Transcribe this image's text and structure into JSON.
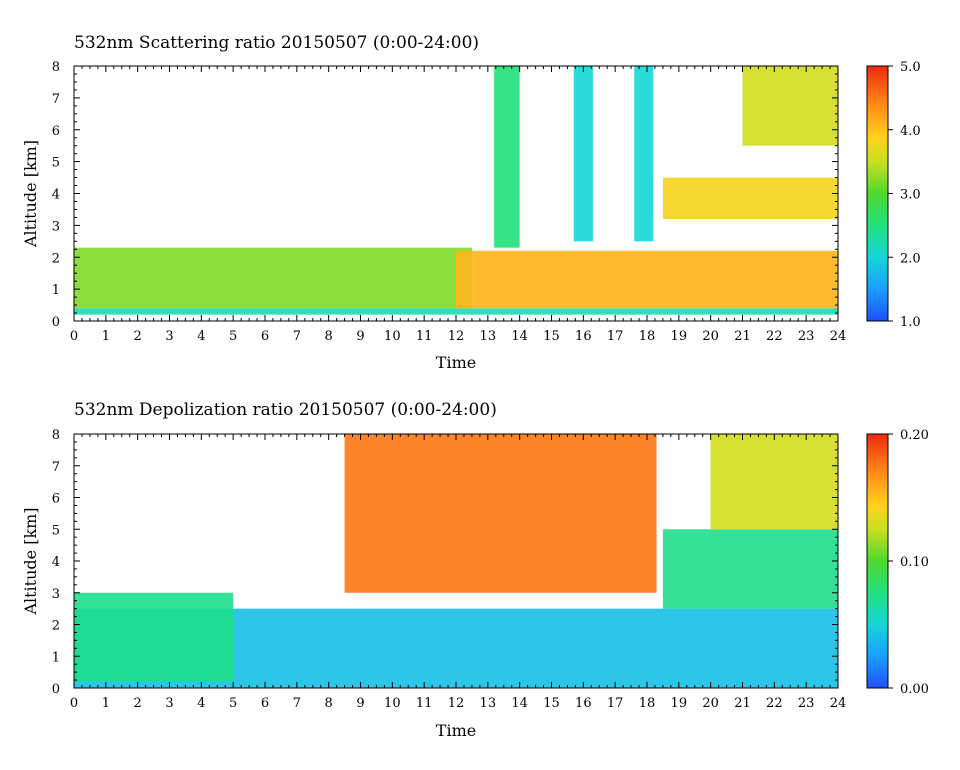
{
  "chart_data": [
    {
      "type": "heatmap",
      "title": "532nm Scattering ratio  20150507 (0:00-24:00)",
      "xlabel": "Time",
      "ylabel": "Altitude [km]",
      "xlim": [
        0,
        24
      ],
      "ylim": [
        0,
        8
      ],
      "x_ticks": [
        "0",
        "1",
        "2",
        "3",
        "4",
        "5",
        "6",
        "7",
        "8",
        "9",
        "10",
        "11",
        "12",
        "13",
        "14",
        "15",
        "16",
        "17",
        "18",
        "19",
        "20",
        "21",
        "22",
        "23",
        "24"
      ],
      "y_ticks": [
        "0",
        "1",
        "2",
        "3",
        "4",
        "5",
        "6",
        "7",
        "8"
      ],
      "colorbar": {
        "min": 1.0,
        "max": 5.0,
        "tick_labels": [
          "1.0",
          "2.0",
          "3.0",
          "4.0",
          "5.0"
        ]
      },
      "features": [
        {
          "time": [
            0,
            24
          ],
          "altitude": [
            0.2,
            0.4
          ],
          "value": 2.2
        },
        {
          "time": [
            0,
            12.5
          ],
          "altitude": [
            0.4,
            2.3
          ],
          "value": 3.2
        },
        {
          "time": [
            12,
            24
          ],
          "altitude": [
            0.4,
            2.2
          ],
          "value": 4.2
        },
        {
          "time": [
            18.5,
            24
          ],
          "altitude": [
            3.2,
            4.5
          ],
          "value": 3.9
        },
        {
          "time": [
            21,
            24
          ],
          "altitude": [
            5.5,
            8.0
          ],
          "value": 3.6
        },
        {
          "time": [
            13.2,
            14.0
          ],
          "altitude": [
            2.3,
            8.0
          ],
          "value": 2.5
        },
        {
          "time": [
            15.7,
            16.3
          ],
          "altitude": [
            2.5,
            8.0
          ],
          "value": 2.0
        },
        {
          "time": [
            17.6,
            18.2
          ],
          "altitude": [
            2.5,
            8.0
          ],
          "value": 2.0
        }
      ]
    },
    {
      "type": "heatmap",
      "title": "532nm Depolization ratio  20150507 (0:00-24:00)",
      "xlabel": "Time",
      "ylabel": "Altitude [km]",
      "xlim": [
        0,
        24
      ],
      "ylim": [
        0,
        8
      ],
      "x_ticks": [
        "0",
        "1",
        "2",
        "3",
        "4",
        "5",
        "6",
        "7",
        "8",
        "9",
        "10",
        "11",
        "12",
        "13",
        "14",
        "15",
        "16",
        "17",
        "18",
        "19",
        "20",
        "21",
        "22",
        "23",
        "24"
      ],
      "y_ticks": [
        "0",
        "1",
        "2",
        "3",
        "4",
        "5",
        "6",
        "7",
        "8"
      ],
      "colorbar": {
        "min": 0.0,
        "max": 0.2,
        "tick_labels": [
          "0.00",
          "0.10",
          "0.20"
        ]
      },
      "features": [
        {
          "time": [
            0,
            24
          ],
          "altitude": [
            0.0,
            2.5
          ],
          "value": 0.04
        },
        {
          "time": [
            0,
            5
          ],
          "altitude": [
            0.2,
            3.0
          ],
          "value": 0.07
        },
        {
          "time": [
            18.5,
            24
          ],
          "altitude": [
            2.5,
            5.0
          ],
          "value": 0.07
        },
        {
          "time": [
            20,
            24
          ],
          "altitude": [
            5.0,
            8.0
          ],
          "value": 0.13
        },
        {
          "time": [
            8.5,
            18.3
          ],
          "altitude": [
            3.0,
            8.0
          ],
          "value": 0.18
        }
      ]
    }
  ]
}
